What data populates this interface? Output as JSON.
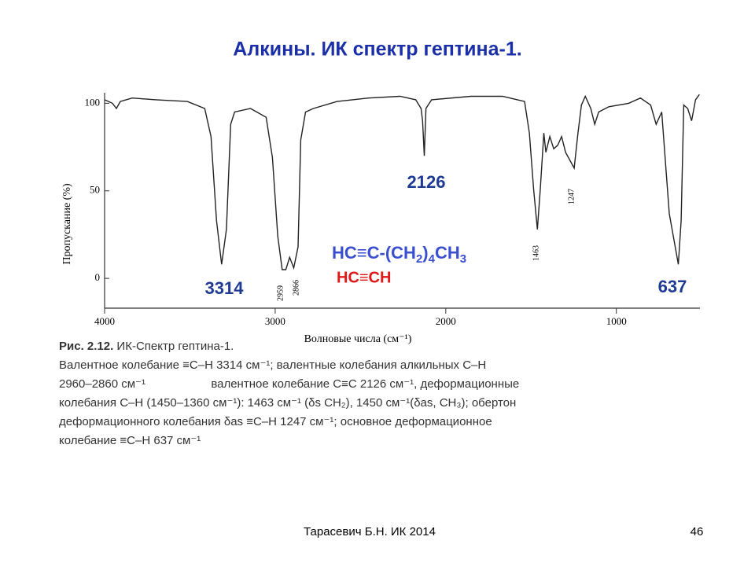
{
  "title": "Алкины. ИК спектр гептина-1.",
  "chart_data": {
    "type": "line",
    "color": "#222222",
    "y_label": "Пропускание  (%)",
    "x_label": "Волновые числа (см⁻¹)",
    "xlim": [
      4000,
      510
    ],
    "xticks": [
      4000,
      3000,
      2000,
      1000
    ],
    "ylim": [
      -17,
      106
    ],
    "yticks": [
      0,
      50,
      100
    ],
    "x": [
      4000,
      3954,
      3931,
      3908,
      3838,
      3700,
      3515,
      3413,
      3376,
      3344,
      3314,
      3286,
      3261,
      3238,
      3145,
      3053,
      3016,
      2985,
      2959,
      2938,
      2915,
      2891,
      2866,
      2850,
      2822,
      2776,
      2637,
      2453,
      2268,
      2176,
      2145,
      2136,
      2126,
      2116,
      2083,
      1852,
      1667,
      1538,
      1510,
      1485,
      1463,
      1446,
      1425,
      1413,
      1390,
      1367,
      1344,
      1321,
      1298,
      1247,
      1225,
      1205,
      1182,
      1150,
      1127,
      1104,
      1044,
      928,
      859,
      799,
      767,
      734,
      690,
      637,
      620,
      605,
      582,
      559,
      536,
      513
    ],
    "values": [
      102,
      100,
      97,
      101,
      103,
      102,
      101,
      97,
      81,
      33,
      8,
      28,
      88,
      95,
      97,
      92,
      69,
      24,
      5,
      5,
      12,
      6,
      18,
      79,
      95,
      97,
      101,
      103,
      104,
      102,
      97,
      90,
      70,
      97,
      102,
      104,
      104,
      101,
      83,
      51,
      28,
      51,
      83,
      72,
      81,
      74,
      76,
      81,
      72,
      63,
      83,
      99,
      104,
      97,
      88,
      95,
      98,
      100,
      103,
      99,
      88,
      95,
      37,
      8,
      33,
      99,
      97,
      90,
      102,
      105
    ],
    "annotations": [
      "3314",
      "2126",
      "637"
    ],
    "minor_annotations": [
      "2959",
      "2866",
      "1463",
      "1247"
    ],
    "formula": [
      {
        "text": "HC≡C-(CH",
        "sub": false
      },
      {
        "text": "2",
        "sub": true
      },
      {
        "text": ")",
        "sub": false
      },
      {
        "text": "4",
        "sub": true
      },
      {
        "text": "CH",
        "sub": false
      },
      {
        "text": "3",
        "sub": true
      }
    ],
    "formula_color": "#3a4fd0",
    "formula2": "HC≡CH",
    "formula2_color": "#e01818",
    "annotation_color": "#1f3a93"
  },
  "caption": {
    "label": "Рис. 2.12.",
    "text": " ИК-Спектр гептина-1.",
    "lines": [
      "Валентное колебание ≡C–H 3314 см⁻¹; валентные колебания алкильных C–H",
      "2960–2860 см⁻¹                    валентное колебание C≡C 2126 см⁻¹, деформационные",
      "колебания C–H (1450–1360 см⁻¹): 1463 см⁻¹ (δs CH₂), 1450 см⁻¹(δas, CH₃); обертон",
      "деформационного колебания δas ≡C–H 1247 см⁻¹; основное деформационное",
      "колебание ≡C–H 637 см⁻¹"
    ]
  },
  "footer": {
    "text": "Тарасевич Б.Н.  ИК 2014",
    "page": "46"
  }
}
